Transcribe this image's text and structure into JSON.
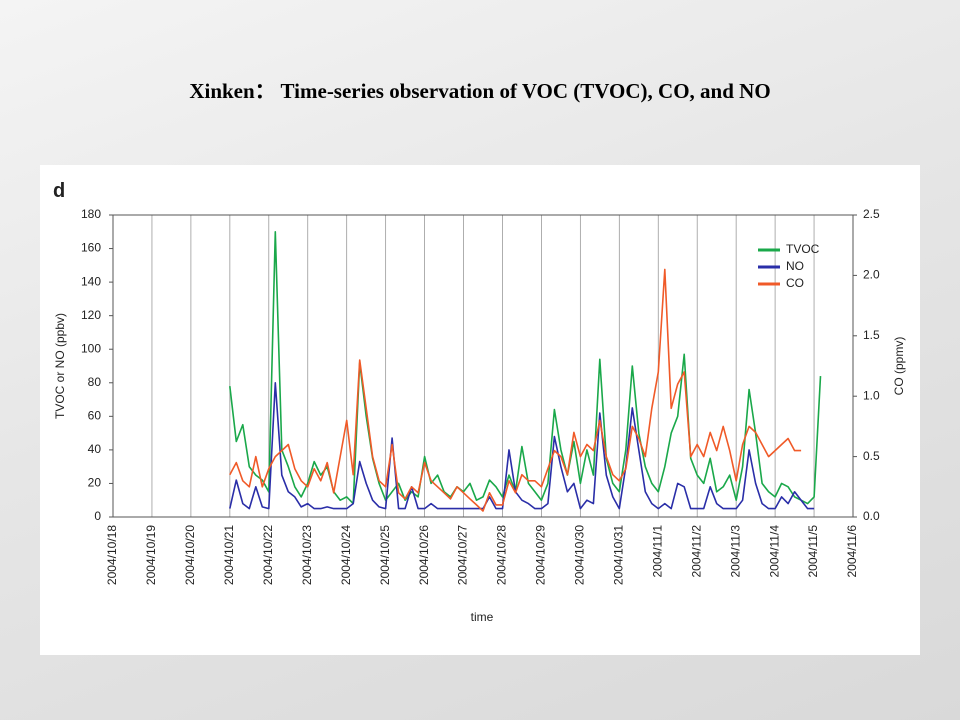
{
  "chart_data": {
    "type": "line",
    "title": "Xinken： Time-series observation of VOC (TVOC), CO, and NO",
    "panel_label": "d",
    "x_label": "time",
    "y_label": "TVOC or NO (ppbv)",
    "y2_label": "CO (ppmv)",
    "xlim": [
      "2004/10/18",
      "2004/11/6"
    ],
    "xticks": [
      "2004/10/18",
      "2004/10/19",
      "2004/10/20",
      "2004/10/21",
      "2004/10/22",
      "2004/10/23",
      "2004/10/24",
      "2004/10/25",
      "2004/10/26",
      "2004/10/27",
      "2004/10/28",
      "2004/10/29",
      "2004/10/30",
      "2004/10/31",
      "2004/11/1",
      "2004/11/2",
      "2004/11/3",
      "2004/11/4",
      "2004/11/5",
      "2004/11/6"
    ],
    "ylim": [
      0,
      180
    ],
    "yticks": [
      0,
      20,
      40,
      60,
      80,
      100,
      120,
      140,
      160,
      180
    ],
    "y2lim": [
      0,
      2.5
    ],
    "y2ticks": [
      {
        "value": 0,
        "label": "0.0"
      },
      0.5,
      {
        "value": 1,
        "label": "1.0"
      },
      1.5,
      {
        "value": 2,
        "label": "2.0"
      },
      2.5
    ],
    "grid": true,
    "legend": "upper right",
    "x": [
      "2004/10/21 00:00",
      "2004/10/21 04:00",
      "2004/10/21 08:00",
      "2004/10/21 12:00",
      "2004/10/21 16:00",
      "2004/10/21 20:00",
      "2004/10/22 00:00",
      "2004/10/22 04:00",
      "2004/10/22 08:00",
      "2004/10/22 12:00",
      "2004/10/22 16:00",
      "2004/10/22 20:00",
      "2004/10/23 00:00",
      "2004/10/23 04:00",
      "2004/10/23 08:00",
      "2004/10/23 12:00",
      "2004/10/23 16:00",
      "2004/10/23 20:00",
      "2004/10/24 00:00",
      "2004/10/24 04:00",
      "2004/10/24 08:00",
      "2004/10/24 12:00",
      "2004/10/24 16:00",
      "2004/10/24 20:00",
      "2004/10/25 00:00",
      "2004/10/25 04:00",
      "2004/10/25 08:00",
      "2004/10/25 12:00",
      "2004/10/25 16:00",
      "2004/10/25 20:00",
      "2004/10/26 00:00",
      "2004/10/26 04:00",
      "2004/10/26 08:00",
      "2004/10/26 12:00",
      "2004/10/26 16:00",
      "2004/10/26 20:00",
      "2004/10/27 00:00",
      "2004/10/27 04:00",
      "2004/10/27 08:00",
      "2004/10/27 12:00",
      "2004/10/27 16:00",
      "2004/10/27 20:00",
      "2004/10/28 00:00",
      "2004/10/28 04:00",
      "2004/10/28 08:00",
      "2004/10/28 12:00",
      "2004/10/28 16:00",
      "2004/10/28 20:00",
      "2004/10/29 00:00",
      "2004/10/29 04:00",
      "2004/10/29 08:00",
      "2004/10/29 12:00",
      "2004/10/29 16:00",
      "2004/10/29 20:00",
      "2004/10/30 00:00",
      "2004/10/30 04:00",
      "2004/10/30 08:00",
      "2004/10/30 12:00",
      "2004/10/30 16:00",
      "2004/10/30 20:00",
      "2004/10/31 00:00",
      "2004/10/31 04:00",
      "2004/10/31 08:00",
      "2004/10/31 12:00",
      "2004/10/31 16:00",
      "2004/10/31 20:00",
      "2004/11/1 00:00",
      "2004/11/1 04:00",
      "2004/11/1 08:00",
      "2004/11/1 12:00",
      "2004/11/1 16:00",
      "2004/11/1 20:00",
      "2004/11/2 00:00",
      "2004/11/2 04:00",
      "2004/11/2 08:00",
      "2004/11/2 12:00",
      "2004/11/2 16:00",
      "2004/11/2 20:00",
      "2004/11/3 00:00",
      "2004/11/3 04:00",
      "2004/11/3 08:00",
      "2004/11/3 12:00",
      "2004/11/3 16:00",
      "2004/11/3 20:00",
      "2004/11/4 00:00",
      "2004/11/4 04:00",
      "2004/11/4 08:00",
      "2004/11/4 12:00",
      "2004/11/4 16:00",
      "2004/11/4 20:00",
      "2004/11/5 00:00",
      "2004/11/5 04:00"
    ],
    "series": [
      {
        "name": "TVOC",
        "color": "#1aa84a",
        "values": [
          78,
          45,
          55,
          30,
          25,
          22,
          15,
          170,
          40,
          30,
          18,
          12,
          20,
          33,
          25,
          30,
          15,
          10,
          12,
          8,
          92,
          60,
          35,
          20,
          10,
          15,
          20,
          10,
          15,
          12,
          36,
          20,
          25,
          15,
          12,
          18,
          15,
          20,
          10,
          12,
          22,
          18,
          12,
          25,
          15,
          42,
          20,
          15,
          10,
          20,
          64,
          40,
          25,
          45,
          20,
          40,
          25,
          94,
          35,
          20,
          15,
          40,
          90,
          50,
          30,
          20,
          15,
          30,
          50,
          60,
          97,
          35,
          25,
          20,
          35,
          15,
          18,
          25,
          10,
          30,
          76,
          50,
          20,
          15,
          12,
          20,
          18,
          12,
          10,
          8,
          12,
          84
        ]
      },
      {
        "name": "NO",
        "color": "#2a2ea8",
        "values": [
          5,
          22,
          8,
          5,
          18,
          6,
          5,
          80,
          25,
          15,
          12,
          6,
          8,
          5,
          5,
          6,
          5,
          5,
          5,
          8,
          33,
          20,
          10,
          6,
          5,
          47,
          5,
          5,
          18,
          5,
          5,
          8,
          5,
          5,
          5,
          5,
          5,
          5,
          5,
          5,
          12,
          5,
          5,
          40,
          15,
          10,
          8,
          5,
          5,
          8,
          48,
          30,
          15,
          20,
          5,
          10,
          8,
          62,
          25,
          12,
          5,
          30,
          65,
          40,
          15,
          8,
          5,
          8,
          5,
          20,
          18,
          5,
          5,
          5,
          18,
          8,
          5,
          5,
          5,
          10,
          40,
          20,
          8,
          5,
          5,
          12,
          8,
          15,
          10,
          5,
          5,
          null
        ]
      },
      {
        "name": "CO",
        "color": "#f05a28",
        "axis": "y2",
        "values": [
          0.35,
          0.45,
          0.3,
          0.25,
          0.5,
          0.25,
          0.4,
          0.5,
          0.55,
          0.6,
          0.4,
          0.3,
          0.25,
          0.4,
          0.3,
          0.45,
          0.2,
          0.5,
          0.8,
          0.35,
          1.3,
          0.9,
          0.5,
          0.3,
          0.25,
          0.6,
          0.2,
          0.15,
          0.25,
          0.2,
          0.45,
          0.3,
          0.25,
          0.2,
          0.15,
          0.25,
          0.2,
          0.15,
          0.1,
          0.05,
          0.2,
          0.1,
          0.1,
          0.3,
          0.2,
          0.35,
          0.3,
          0.3,
          0.25,
          0.4,
          0.55,
          0.5,
          0.35,
          0.7,
          0.5,
          0.6,
          0.55,
          0.8,
          0.5,
          0.35,
          0.3,
          0.4,
          0.75,
          0.65,
          0.5,
          0.9,
          1.2,
          2.05,
          0.9,
          1.1,
          1.2,
          0.5,
          0.6,
          0.5,
          0.7,
          0.55,
          0.75,
          0.55,
          0.3,
          0.6,
          0.75,
          0.7,
          0.6,
          0.5,
          0.55,
          0.6,
          0.65,
          0.55,
          0.55,
          null,
          null,
          null
        ]
      }
    ]
  }
}
